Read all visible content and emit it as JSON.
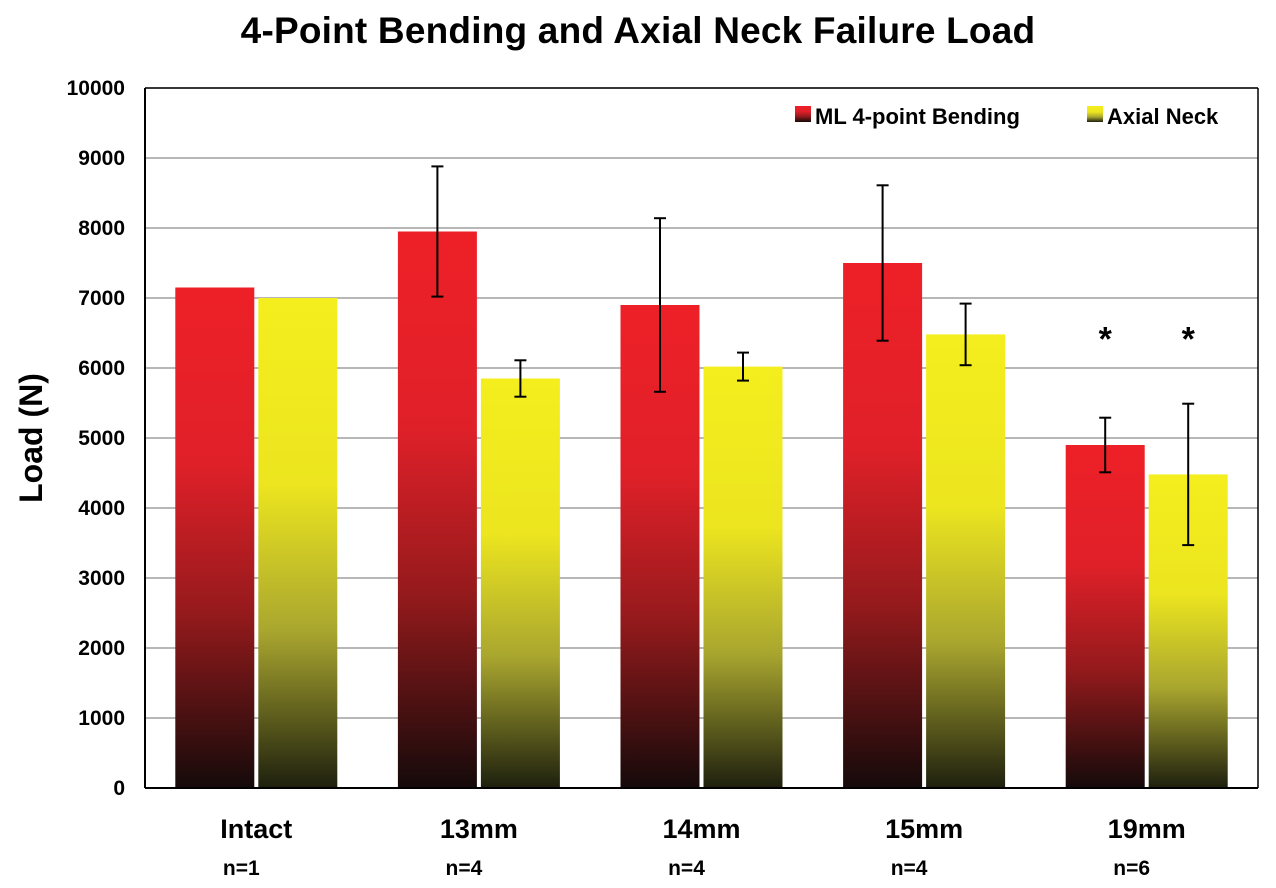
{
  "chart_data": {
    "type": "bar",
    "title": "4-Point Bending and Axial Neck Failure Load",
    "xlabel": "",
    "ylabel": "Load (N)",
    "ylim": [
      0,
      10000
    ],
    "yticks": [
      0,
      1000,
      2000,
      3000,
      4000,
      5000,
      6000,
      7000,
      8000,
      9000,
      10000
    ],
    "grid": true,
    "legend_position": "top-right",
    "categories": [
      "Intact",
      "13mm",
      "14mm",
      "15mm",
      "19mm"
    ],
    "sample_sizes": [
      "n=1",
      "n=4",
      "n=4",
      "n=4",
      "n=6"
    ],
    "series": [
      {
        "name": "ML 4-point Bending",
        "color": "#ee2027",
        "values": [
          7150,
          7950,
          6900,
          7500,
          4900
        ],
        "errors": [
          null,
          930,
          1240,
          1110,
          390
        ],
        "significance": [
          "",
          "",
          "",
          "",
          "*"
        ]
      },
      {
        "name": "Axial Neck",
        "color": "#f2ea1c",
        "values": [
          7000,
          5850,
          6020,
          6480,
          4480
        ],
        "errors": [
          null,
          260,
          200,
          440,
          1010
        ],
        "significance": [
          "",
          "",
          "",
          "",
          "*"
        ]
      }
    ]
  }
}
